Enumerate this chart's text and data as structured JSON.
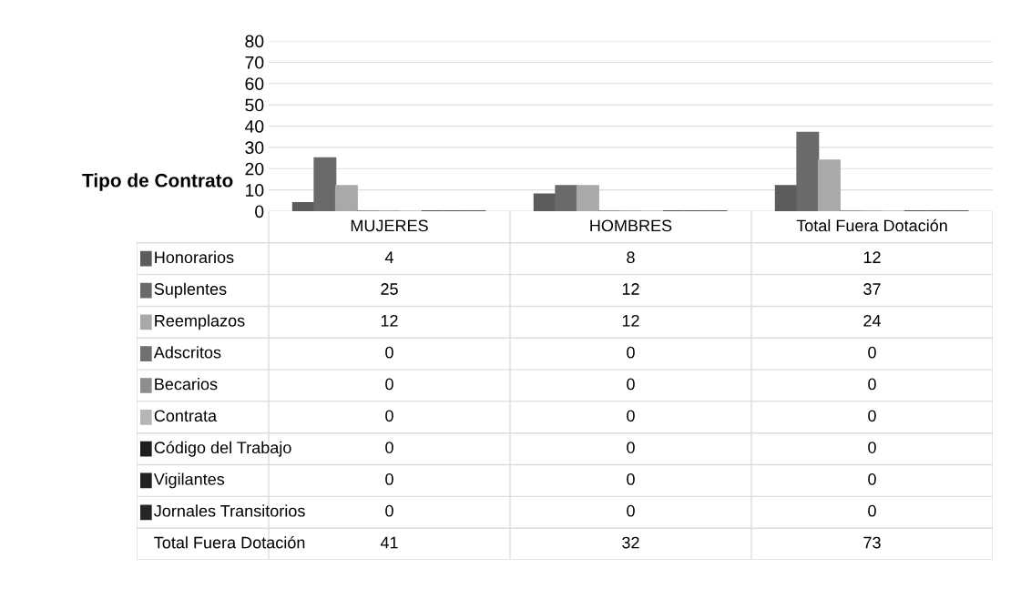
{
  "chart_data": {
    "type": "bar",
    "ylabel": "Tipo de Contrato",
    "categories": [
      "MUJERES",
      "HOMBRES",
      "Total Fuera Dotación"
    ],
    "series": [
      {
        "name": "Honorarios",
        "color": "#5c5c5c",
        "values": [
          4,
          8,
          12
        ]
      },
      {
        "name": "Suplentes",
        "color": "#6a6a6a",
        "values": [
          25,
          12,
          37
        ]
      },
      {
        "name": "Reemplazos",
        "color": "#a9a9a9",
        "values": [
          12,
          12,
          24
        ]
      },
      {
        "name": "Adscritos",
        "color": "#707070",
        "values": [
          0,
          0,
          0
        ]
      },
      {
        "name": "Becarios",
        "color": "#8e8e8e",
        "values": [
          0,
          0,
          0
        ]
      },
      {
        "name": "Contrata",
        "color": "#b5b5b5",
        "values": [
          0,
          0,
          0
        ]
      },
      {
        "name": "Código del Trabajo",
        "color": "#1e1e1e",
        "values": [
          0,
          0,
          0
        ]
      },
      {
        "name": "Vigilantes",
        "color": "#222222",
        "values": [
          0,
          0,
          0
        ]
      },
      {
        "name": "Jornales Transitorios",
        "color": "#262626",
        "values": [
          0,
          0,
          0
        ]
      }
    ],
    "annotations": [
      "Total Fuera Dotación",
      "41",
      "32",
      "73"
    ],
    "ylim": [
      0,
      80
    ],
    "yticks": [
      0,
      10,
      20,
      30,
      40,
      50,
      60,
      70,
      80
    ],
    "grid": "y",
    "data_labels": true,
    "legend": "left"
  }
}
